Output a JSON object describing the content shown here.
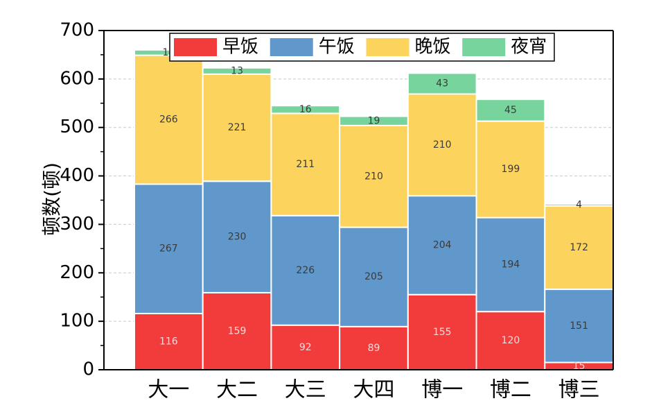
{
  "chart_data": {
    "type": "bar",
    "stacked": true,
    "title": "",
    "xlabel": "",
    "ylabel": "顿数(顿)",
    "ylim": [
      0,
      700
    ],
    "yticks": [
      0,
      100,
      200,
      300,
      400,
      500,
      600,
      700
    ],
    "grid": true,
    "legend_position": "top",
    "categories": [
      "大一",
      "大二",
      "大三",
      "大四",
      "博一",
      "博二",
      "博三"
    ],
    "series": [
      {
        "name": "早饭",
        "color": "#f23c3c",
        "values": [
          116,
          159,
          92,
          89,
          155,
          120,
          15
        ]
      },
      {
        "name": "午饭",
        "color": "#6198cb",
        "values": [
          267,
          230,
          226,
          205,
          204,
          194,
          151
        ]
      },
      {
        "name": "晚饭",
        "color": "#fcd35c",
        "values": [
          266,
          221,
          211,
          210,
          210,
          199,
          172
        ]
      },
      {
        "name": "夜宵",
        "color": "#76d49c",
        "values": [
          11,
          13,
          16,
          19,
          43,
          45,
          4
        ]
      }
    ]
  }
}
